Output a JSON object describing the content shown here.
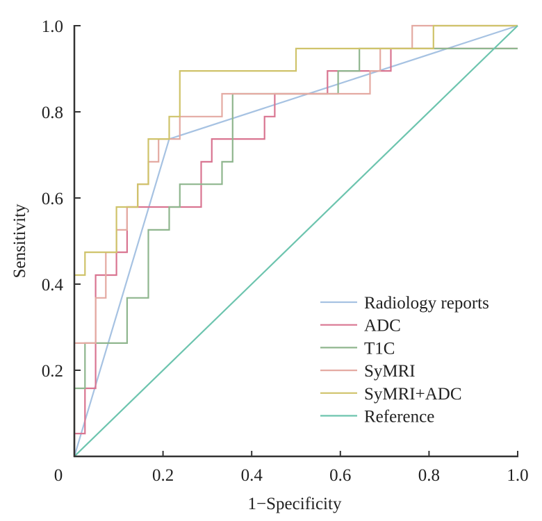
{
  "chart_data": {
    "type": "line",
    "title": "",
    "xlabel": "1−Specificity",
    "ylabel": "Sensitivity",
    "xlim": [
      0,
      1
    ],
    "ylim": [
      0,
      1
    ],
    "grid": false,
    "legend_position": "bottom-right",
    "x_ticks": [
      {
        "value": 0,
        "label": "0"
      },
      {
        "value": 0.2,
        "label": "0.2"
      },
      {
        "value": 0.4,
        "label": "0.4"
      },
      {
        "value": 0.6,
        "label": "0.6"
      },
      {
        "value": 0.8,
        "label": "0.8"
      },
      {
        "value": 1.0,
        "label": "1.0"
      }
    ],
    "y_ticks": [
      {
        "value": 0.2,
        "label": "0.2"
      },
      {
        "value": 0.4,
        "label": "0.4"
      },
      {
        "value": 0.6,
        "label": "0.6"
      },
      {
        "value": 0.8,
        "label": "0.8"
      },
      {
        "value": 1.0,
        "label": "1.0"
      }
    ],
    "series": [
      {
        "name": "Radiology reports",
        "color": "#a6c2e2",
        "points": [
          [
            0,
            0
          ],
          [
            0.214,
            0.737
          ],
          [
            1,
            1
          ]
        ]
      },
      {
        "name": "ADC",
        "color": "#d97591",
        "points": [
          [
            0,
            0
          ],
          [
            0,
            0.053
          ],
          [
            0.024,
            0.053
          ],
          [
            0.024,
            0.158
          ],
          [
            0.048,
            0.158
          ],
          [
            0.048,
            0.421
          ],
          [
            0.071,
            0.421
          ],
          [
            0.071,
            0.421
          ],
          [
            0.095,
            0.421
          ],
          [
            0.095,
            0.474
          ],
          [
            0.119,
            0.474
          ],
          [
            0.119,
            0.579
          ],
          [
            0.143,
            0.579
          ],
          [
            0.286,
            0.579
          ],
          [
            0.286,
            0.684
          ],
          [
            0.31,
            0.684
          ],
          [
            0.31,
            0.737
          ],
          [
            0.429,
            0.737
          ],
          [
            0.429,
            0.789
          ],
          [
            0.452,
            0.789
          ],
          [
            0.452,
            0.842
          ],
          [
            0.571,
            0.842
          ],
          [
            0.571,
            0.895
          ],
          [
            0.69,
            0.895
          ],
          [
            0.69,
            0.895
          ],
          [
            0.714,
            0.895
          ],
          [
            0.714,
            0.947
          ],
          [
            1,
            0.947
          ]
        ]
      },
      {
        "name": "T1C",
        "color": "#8fb68e",
        "points": [
          [
            0,
            0
          ],
          [
            0,
            0.158
          ],
          [
            0.024,
            0.158
          ],
          [
            0.024,
            0.263
          ],
          [
            0.119,
            0.263
          ],
          [
            0.119,
            0.368
          ],
          [
            0.167,
            0.368
          ],
          [
            0.167,
            0.526
          ],
          [
            0.214,
            0.526
          ],
          [
            0.214,
            0.579
          ],
          [
            0.238,
            0.579
          ],
          [
            0.238,
            0.632
          ],
          [
            0.333,
            0.632
          ],
          [
            0.333,
            0.684
          ],
          [
            0.357,
            0.684
          ],
          [
            0.357,
            0.842
          ],
          [
            0.595,
            0.842
          ],
          [
            0.595,
            0.895
          ],
          [
            0.643,
            0.895
          ],
          [
            0.643,
            0.947
          ],
          [
            1,
            0.947
          ]
        ]
      },
      {
        "name": "SyMRI",
        "color": "#e4aaa2",
        "points": [
          [
            0,
            0
          ],
          [
            0,
            0.263
          ],
          [
            0.048,
            0.263
          ],
          [
            0.048,
            0.368
          ],
          [
            0.071,
            0.368
          ],
          [
            0.071,
            0.474
          ],
          [
            0.095,
            0.474
          ],
          [
            0.095,
            0.526
          ],
          [
            0.119,
            0.526
          ],
          [
            0.119,
            0.579
          ],
          [
            0.143,
            0.579
          ],
          [
            0.143,
            0.632
          ],
          [
            0.167,
            0.632
          ],
          [
            0.167,
            0.684
          ],
          [
            0.19,
            0.684
          ],
          [
            0.19,
            0.737
          ],
          [
            0.238,
            0.737
          ],
          [
            0.238,
            0.789
          ],
          [
            0.333,
            0.789
          ],
          [
            0.333,
            0.842
          ],
          [
            0.667,
            0.842
          ],
          [
            0.667,
            0.895
          ],
          [
            0.69,
            0.895
          ],
          [
            0.69,
            0.947
          ],
          [
            0.762,
            0.947
          ],
          [
            0.762,
            1.0
          ],
          [
            1,
            1
          ]
        ]
      },
      {
        "name": "SyMRI+ADC",
        "color": "#cfc36a",
        "points": [
          [
            0,
            0.421
          ],
          [
            0.024,
            0.421
          ],
          [
            0.024,
            0.474
          ],
          [
            0.095,
            0.474
          ],
          [
            0.095,
            0.579
          ],
          [
            0.143,
            0.579
          ],
          [
            0.143,
            0.632
          ],
          [
            0.167,
            0.632
          ],
          [
            0.167,
            0.737
          ],
          [
            0.214,
            0.737
          ],
          [
            0.214,
            0.789
          ],
          [
            0.238,
            0.789
          ],
          [
            0.238,
            0.895
          ],
          [
            0.5,
            0.895
          ],
          [
            0.5,
            0.947
          ],
          [
            0.81,
            0.947
          ],
          [
            0.81,
            1.0
          ],
          [
            1,
            1
          ]
        ]
      },
      {
        "name": "Reference",
        "color": "#6cc4ae",
        "points": [
          [
            0,
            0
          ],
          [
            1,
            1
          ]
        ]
      }
    ]
  }
}
